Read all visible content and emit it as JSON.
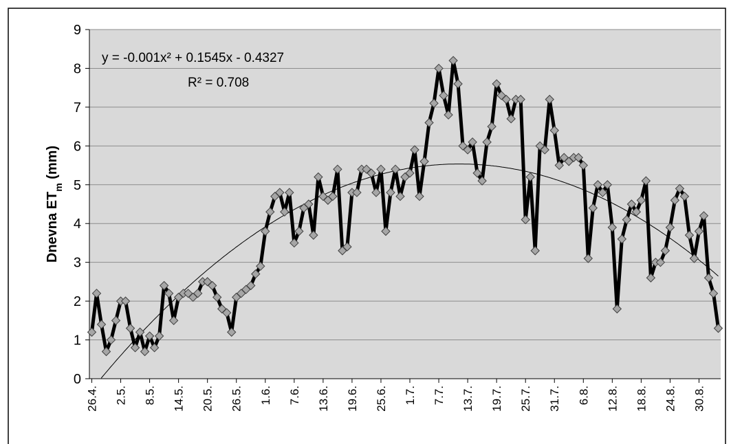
{
  "chart_data": {
    "type": "line",
    "y_label": "Dnevna ET",
    "y_label_subscript": "m",
    "y_label_unit": "(mm)",
    "categories": [
      "26.4.",
      null,
      null,
      null,
      null,
      null,
      "2.5.",
      null,
      null,
      null,
      null,
      null,
      "8.5.",
      null,
      null,
      null,
      null,
      null,
      "14.5.",
      null,
      null,
      null,
      null,
      null,
      "20.5.",
      null,
      null,
      null,
      null,
      null,
      "26.5.",
      null,
      null,
      null,
      null,
      null,
      "1.6.",
      null,
      null,
      null,
      null,
      null,
      "7.6.",
      null,
      null,
      null,
      null,
      null,
      "13.6.",
      null,
      null,
      null,
      null,
      null,
      "19.6.",
      null,
      null,
      null,
      null,
      null,
      "25.6.",
      null,
      null,
      null,
      null,
      null,
      "1.7.",
      null,
      null,
      null,
      null,
      null,
      "7.7.",
      null,
      null,
      null,
      null,
      null,
      "13.7.",
      null,
      null,
      null,
      null,
      null,
      "19.7.",
      null,
      null,
      null,
      null,
      null,
      "25.7.",
      null,
      null,
      null,
      null,
      null,
      "31.7.",
      null,
      null,
      null,
      null,
      null,
      "6.8.",
      null,
      null,
      null,
      null,
      null,
      "12.8.",
      null,
      null,
      null,
      null,
      null,
      "18.8.",
      null,
      null,
      null,
      null,
      null,
      "24.8.",
      null,
      null,
      null,
      null,
      null,
      "30.8.",
      null,
      null,
      null,
      null
    ],
    "values": [
      1.2,
      2.2,
      1.4,
      0.7,
      1.0,
      1.5,
      2.0,
      2.0,
      1.3,
      0.8,
      1.2,
      0.7,
      1.1,
      0.8,
      1.1,
      2.4,
      2.2,
      1.5,
      2.1,
      2.2,
      2.2,
      2.1,
      2.2,
      2.5,
      2.5,
      2.4,
      2.1,
      1.8,
      1.7,
      1.2,
      2.1,
      2.2,
      2.3,
      2.4,
      2.7,
      2.9,
      3.8,
      4.3,
      4.7,
      4.8,
      4.3,
      4.8,
      3.5,
      3.8,
      4.4,
      4.5,
      3.7,
      5.2,
      4.7,
      4.6,
      4.7,
      5.4,
      3.3,
      3.4,
      4.8,
      4.8,
      5.4,
      5.4,
      5.3,
      4.8,
      5.4,
      3.8,
      4.8,
      5.4,
      4.7,
      5.2,
      5.3,
      5.9,
      4.7,
      5.6,
      6.6,
      7.1,
      8.0,
      7.3,
      6.8,
      8.2,
      7.6,
      6.0,
      5.9,
      6.1,
      5.3,
      5.1,
      6.1,
      6.5,
      7.6,
      7.3,
      7.2,
      6.7,
      7.2,
      7.2,
      4.1,
      5.2,
      3.3,
      6.0,
      5.9,
      7.2,
      6.4,
      5.5,
      5.7,
      5.6,
      5.7,
      5.7,
      5.5,
      3.1,
      4.4,
      5.0,
      4.8,
      5.0,
      3.9,
      1.8,
      3.6,
      4.1,
      4.5,
      4.3,
      4.6,
      5.1,
      2.6,
      3.0,
      3.0,
      3.3,
      3.9,
      4.6,
      4.9,
      4.7,
      3.7,
      3.1,
      3.8,
      4.2,
      2.6,
      2.2,
      1.3
    ],
    "color": "#000000",
    "marker_color": "#a6a6a6",
    "ylim": [
      0,
      9
    ],
    "yticks": [
      0,
      1,
      2,
      3,
      4,
      5,
      6,
      7,
      8,
      9
    ],
    "grid": true,
    "trendline": {
      "equation": "y = -0.001x² + 0.1545x - 0.4327",
      "r2": "R² = 0.708",
      "coefficients": [
        -0.001,
        0.1545,
        -0.4327
      ]
    }
  }
}
